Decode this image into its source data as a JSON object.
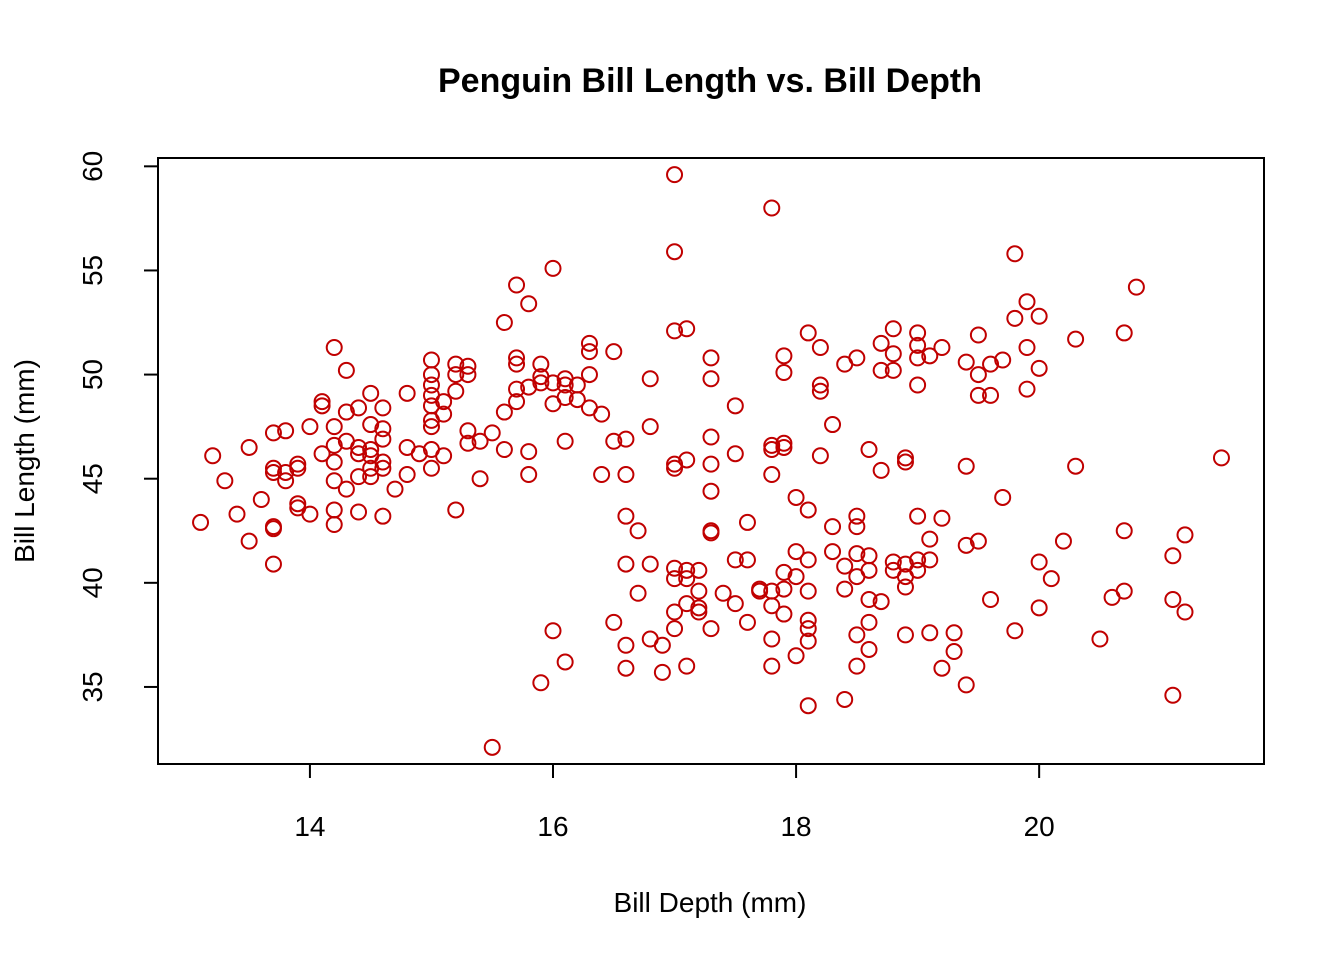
{
  "chart_data": {
    "type": "scatter",
    "title": "Penguin Bill Length vs. Bill Depth",
    "xlabel": "Bill Depth (mm)",
    "ylabel": "Bill Length (mm)",
    "xlim": [
      12.75,
      21.85
    ],
    "ylim": [
      31.3,
      60.4
    ],
    "x_ticks": [
      14,
      16,
      18,
      20
    ],
    "y_ticks": [
      35,
      40,
      45,
      50,
      55,
      60
    ],
    "grid": false,
    "legend": "none",
    "point_color": "#C00000",
    "series": [
      {
        "x": [
          13.1,
          13.2,
          13.3,
          13.4,
          13.5,
          13.5,
          13.6,
          13.7,
          13.7,
          13.7,
          13.7,
          13.7,
          13.7,
          13.8,
          13.8,
          13.8,
          13.9,
          13.9,
          13.9,
          13.9,
          14.0,
          14.0,
          14.1,
          14.1,
          14.1,
          14.2,
          14.2,
          14.2,
          14.2,
          14.2,
          14.2,
          14.2,
          14.3,
          14.3,
          14.3,
          14.3,
          14.4,
          14.4,
          14.4,
          14.4,
          14.4,
          14.5,
          14.5,
          14.5,
          14.5,
          14.5,
          14.5,
          14.6,
          14.6,
          14.6,
          14.6,
          14.6,
          14.6,
          14.7,
          14.8,
          14.8,
          14.8,
          14.9,
          15.0,
          15.0,
          15.0,
          15.0,
          15.0,
          15.0,
          15.0,
          15.0,
          15.0,
          15.1,
          15.1,
          15.1,
          15.2,
          15.2,
          15.2,
          15.2,
          15.3,
          15.3,
          15.3,
          15.3,
          15.4,
          15.4,
          15.5,
          15.5,
          15.6,
          15.6,
          15.6,
          15.7,
          15.7,
          15.7,
          15.7,
          15.7,
          15.8,
          15.8,
          15.8,
          15.8,
          15.9,
          15.9,
          15.9,
          15.9,
          16.0,
          16.0,
          16.0,
          16.0,
          16.1,
          16.1,
          16.1,
          16.1,
          16.1,
          16.2,
          16.2,
          16.3,
          16.3,
          16.3,
          16.3,
          16.4,
          16.4,
          16.5,
          16.5,
          16.5,
          16.6,
          16.6,
          16.6,
          16.6,
          16.6,
          16.6,
          16.7,
          16.7,
          16.8,
          16.8,
          16.8,
          16.8,
          16.9,
          16.9,
          17.0,
          17.0,
          17.0,
          17.0,
          17.0,
          17.0,
          17.0,
          17.0,
          17.0,
          17.1,
          17.1,
          17.1,
          17.1,
          17.1,
          17.1,
          17.2,
          17.2,
          17.2,
          17.2,
          17.3,
          17.3,
          17.3,
          17.3,
          17.3,
          17.3,
          17.3,
          17.3,
          17.4,
          17.5,
          17.5,
          17.5,
          17.5,
          17.6,
          17.6,
          17.6,
          17.7,
          17.7,
          17.8,
          17.8,
          17.8,
          17.8,
          17.8,
          17.8,
          17.8,
          17.8,
          17.9,
          17.9,
          17.9,
          17.9,
          17.9,
          17.9,
          17.9,
          18.0,
          18.0,
          18.0,
          18.0,
          18.1,
          18.1,
          18.1,
          18.1,
          18.1,
          18.1,
          18.1,
          18.1,
          18.2,
          18.2,
          18.2,
          18.2,
          18.3,
          18.3,
          18.3,
          18.4,
          18.4,
          18.4,
          18.4,
          18.5,
          18.5,
          18.5,
          18.5,
          18.5,
          18.5,
          18.5,
          18.6,
          18.6,
          18.6,
          18.6,
          18.6,
          18.6,
          18.7,
          18.7,
          18.7,
          18.7,
          18.8,
          18.8,
          18.8,
          18.8,
          18.8,
          18.9,
          18.9,
          18.9,
          18.9,
          18.9,
          18.9,
          19.0,
          19.0,
          19.0,
          19.0,
          19.0,
          19.0,
          19.0,
          19.1,
          19.1,
          19.1,
          19.1,
          19.2,
          19.2,
          19.2,
          19.3,
          19.3,
          19.4,
          19.4,
          19.4,
          19.4,
          19.5,
          19.5,
          19.5,
          19.5,
          19.6,
          19.6,
          19.6,
          19.7,
          19.7,
          19.8,
          19.8,
          19.8,
          19.9,
          19.9,
          19.9,
          20.0,
          20.0,
          20.0,
          20.0,
          20.1,
          20.2,
          20.3,
          20.3,
          20.5,
          20.6,
          20.7,
          20.7,
          20.7,
          20.8,
          21.1,
          21.1,
          21.1,
          21.2,
          21.2,
          21.5
        ],
        "y": [
          42.9,
          46.1,
          44.9,
          43.3,
          46.5,
          42.0,
          44.0,
          47.2,
          45.5,
          45.3,
          42.7,
          42.6,
          40.9,
          47.3,
          45.3,
          44.9,
          45.7,
          45.5,
          43.8,
          43.6,
          47.5,
          43.3,
          48.7,
          48.5,
          46.2,
          51.3,
          47.5,
          46.6,
          45.8,
          44.9,
          43.5,
          42.8,
          50.2,
          48.2,
          46.8,
          44.5,
          48.4,
          46.5,
          46.2,
          45.1,
          43.4,
          49.1,
          47.6,
          46.4,
          46.1,
          45.5,
          45.1,
          48.4,
          47.4,
          46.9,
          45.8,
          45.5,
          43.2,
          44.5,
          49.1,
          46.5,
          45.2,
          46.2,
          50.7,
          50.0,
          49.5,
          49.0,
          48.5,
          47.8,
          47.5,
          46.4,
          45.5,
          48.7,
          48.1,
          46.1,
          50.5,
          50.0,
          49.2,
          43.5,
          50.4,
          50.0,
          47.3,
          46.7,
          46.8,
          45.0,
          47.2,
          32.1,
          52.5,
          48.2,
          46.4,
          54.3,
          50.8,
          50.5,
          49.3,
          48.7,
          53.4,
          49.4,
          46.3,
          45.2,
          50.5,
          49.9,
          49.6,
          35.2,
          55.1,
          49.6,
          48.6,
          37.7,
          49.8,
          49.5,
          48.9,
          46.8,
          36.2,
          49.5,
          48.8,
          51.5,
          51.1,
          50.0,
          48.4,
          48.1,
          45.2,
          51.1,
          46.8,
          38.1,
          46.9,
          45.2,
          43.2,
          40.9,
          37.0,
          35.9,
          42.5,
          39.5,
          49.8,
          47.5,
          40.9,
          37.3,
          37.0,
          35.7,
          59.6,
          55.9,
          52.1,
          45.7,
          45.5,
          40.7,
          40.2,
          38.6,
          37.8,
          52.2,
          45.9,
          40.6,
          40.2,
          39.0,
          36.0,
          40.6,
          39.6,
          38.8,
          38.6,
          50.8,
          49.8,
          47.0,
          45.7,
          44.4,
          42.5,
          42.4,
          37.8,
          39.5,
          48.5,
          46.2,
          41.1,
          39.0,
          42.9,
          41.1,
          38.1,
          39.7,
          39.6,
          58.0,
          46.6,
          46.4,
          45.2,
          39.6,
          38.9,
          37.3,
          36.0,
          50.9,
          50.1,
          46.7,
          46.5,
          40.5,
          39.7,
          38.5,
          44.1,
          41.5,
          40.3,
          36.5,
          52.0,
          43.5,
          41.1,
          39.6,
          38.2,
          37.8,
          37.2,
          34.1,
          51.3,
          49.5,
          49.2,
          46.1,
          47.6,
          42.7,
          41.5,
          50.5,
          40.8,
          39.7,
          34.4,
          50.8,
          43.2,
          42.7,
          41.4,
          40.3,
          37.5,
          36.0,
          46.4,
          41.3,
          40.6,
          39.2,
          38.1,
          36.8,
          51.5,
          50.2,
          45.4,
          39.1,
          52.2,
          51.0,
          50.2,
          41.0,
          40.6,
          46.0,
          45.8,
          40.9,
          40.3,
          39.8,
          37.5,
          52.0,
          51.4,
          50.8,
          49.5,
          43.2,
          41.1,
          40.6,
          50.9,
          42.1,
          41.1,
          37.6,
          51.3,
          43.1,
          35.9,
          37.6,
          36.7,
          50.6,
          45.6,
          41.8,
          35.1,
          51.9,
          50.0,
          49.0,
          42.0,
          50.5,
          49.0,
          39.2,
          50.7,
          44.1,
          55.8,
          52.7,
          37.7,
          53.5,
          51.3,
          49.3,
          52.8,
          50.3,
          41.0,
          38.8,
          40.2,
          42.0,
          51.7,
          45.6,
          37.3,
          39.3,
          52.0,
          42.5,
          39.6,
          54.2,
          41.3,
          39.2,
          34.6,
          42.3,
          38.6,
          46.0
        ]
      }
    ]
  }
}
